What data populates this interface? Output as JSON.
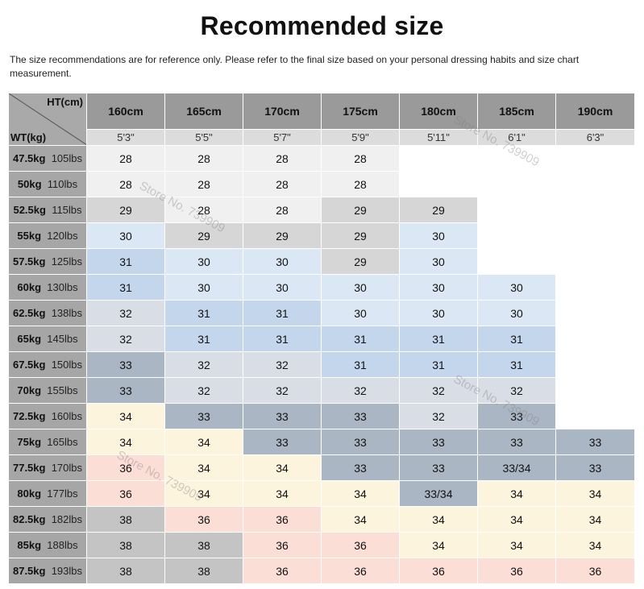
{
  "title": "Recommended size",
  "note": "The size recommendations are for reference only. Please refer to the final size based on your personal dressing habits and size chart measurement.",
  "corner": {
    "height_label": "HT(cm)",
    "weight_label": "WT(kg)"
  },
  "heights": [
    {
      "cm": "160cm",
      "ft": "5'3\""
    },
    {
      "cm": "165cm",
      "ft": "5'5\""
    },
    {
      "cm": "170cm",
      "ft": "5'7\""
    },
    {
      "cm": "175cm",
      "ft": "5'9\""
    },
    {
      "cm": "180cm",
      "ft": "5'11\""
    },
    {
      "cm": "185cm",
      "ft": "6'1\""
    },
    {
      "cm": "190cm",
      "ft": "6'3\""
    }
  ],
  "rows": [
    {
      "kg": "47.5kg",
      "lbs": "105lbs",
      "sizes": [
        "28",
        "28",
        "28",
        "28",
        "",
        "",
        ""
      ]
    },
    {
      "kg": "50kg",
      "lbs": "110lbs",
      "sizes": [
        "28",
        "28",
        "28",
        "28",
        "",
        "",
        ""
      ]
    },
    {
      "kg": "52.5kg",
      "lbs": "115lbs",
      "sizes": [
        "29",
        "28",
        "28",
        "29",
        "29",
        "",
        ""
      ]
    },
    {
      "kg": "55kg",
      "lbs": "120lbs",
      "sizes": [
        "30",
        "29",
        "29",
        "29",
        "30",
        "",
        ""
      ]
    },
    {
      "kg": "57.5kg",
      "lbs": "125lbs",
      "sizes": [
        "31",
        "30",
        "30",
        "29",
        "30",
        "",
        ""
      ]
    },
    {
      "kg": "60kg",
      "lbs": "130lbs",
      "sizes": [
        "31",
        "30",
        "30",
        "30",
        "30",
        "30",
        ""
      ]
    },
    {
      "kg": "62.5kg",
      "lbs": "138lbs",
      "sizes": [
        "32",
        "31",
        "31",
        "30",
        "30",
        "30",
        ""
      ]
    },
    {
      "kg": "65kg",
      "lbs": "145lbs",
      "sizes": [
        "32",
        "31",
        "31",
        "31",
        "31",
        "31",
        ""
      ]
    },
    {
      "kg": "67.5kg",
      "lbs": "150lbs",
      "sizes": [
        "33",
        "32",
        "32",
        "31",
        "31",
        "31",
        ""
      ]
    },
    {
      "kg": "70kg",
      "lbs": "155lbs",
      "sizes": [
        "33",
        "32",
        "32",
        "32",
        "32",
        "32",
        ""
      ]
    },
    {
      "kg": "72.5kg",
      "lbs": "160lbs",
      "sizes": [
        "34",
        "33",
        "33",
        "33",
        "32",
        "33",
        ""
      ]
    },
    {
      "kg": "75kg",
      "lbs": "165lbs",
      "sizes": [
        "34",
        "34",
        "33",
        "33",
        "33",
        "33",
        "33"
      ]
    },
    {
      "kg": "77.5kg",
      "lbs": "170lbs",
      "sizes": [
        "36",
        "34",
        "34",
        "33",
        "33",
        "33/34",
        "33"
      ]
    },
    {
      "kg": "80kg",
      "lbs": "177lbs",
      "sizes": [
        "36",
        "34",
        "34",
        "34",
        "33/34",
        "34",
        "34"
      ]
    },
    {
      "kg": "82.5kg",
      "lbs": "182lbs",
      "sizes": [
        "38",
        "36",
        "36",
        "34",
        "34",
        "34",
        "34"
      ]
    },
    {
      "kg": "85kg",
      "lbs": "188lbs",
      "sizes": [
        "38",
        "38",
        "36",
        "36",
        "34",
        "34",
        "34"
      ]
    },
    {
      "kg": "87.5kg",
      "lbs": "193lbs",
      "sizes": [
        "38",
        "38",
        "36",
        "36",
        "36",
        "36",
        "36"
      ]
    }
  ],
  "size_colors": {
    "28": "#f0f0f0",
    "29": "#d6d6d6",
    "30": "#dbe7f4",
    "31": "#c3d6ec",
    "32": "#d9dde6",
    "33": "#aab6c4",
    "33/34": "#aab6c4",
    "34": "#fdf4de",
    "36": "#fbded6",
    "38": "#c4c4c4",
    "": "#ffffff"
  },
  "watermark": "Store No. 739909"
}
